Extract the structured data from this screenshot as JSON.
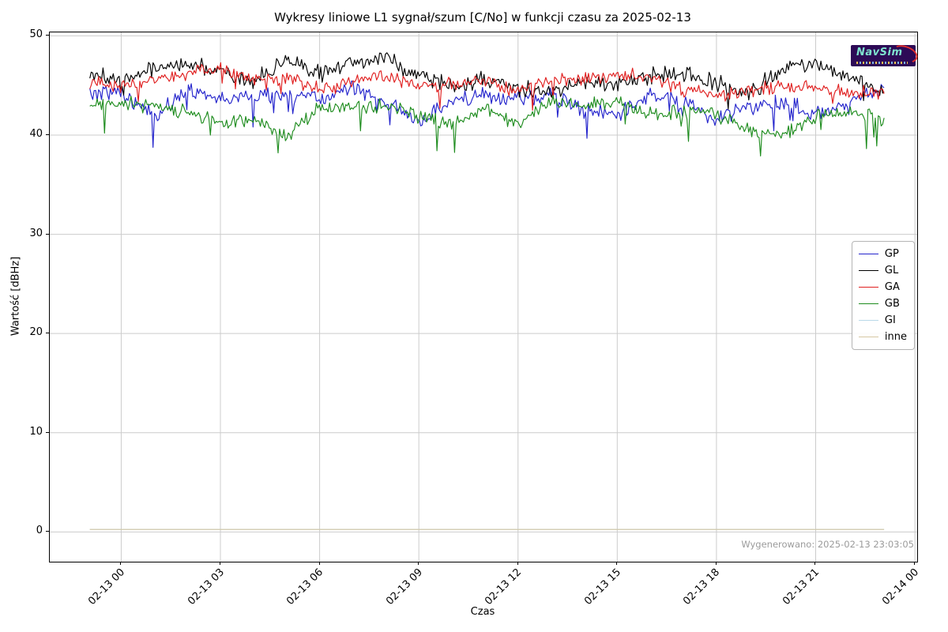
{
  "figure": {
    "title": "Wykresy liniowe L1 sygnał/szum [C/No] w funkcji czasu za 2025-02-13",
    "generated_text": "Wygenerowano: 2025-02-13 23:03:05",
    "logo_text": "NavSim"
  },
  "colors": {
    "grid": "#cccccc",
    "spine": "#000000",
    "watermark_text": "#9b9b9b",
    "logo_bg": "#2d0a56",
    "logo_text": "#7fe3cf",
    "logo_swoosh": "#e03030"
  },
  "chart_data": {
    "type": "line",
    "title": "Wykresy liniowe L1 sygnał/szum [C/No] w funkcji czasu za 2025-02-13",
    "xlabel": "Czas",
    "ylabel": "Wartość [dBHz]",
    "grid": true,
    "legend_position": "center right",
    "xlim_hours": [
      -2.16,
      24.07
    ],
    "ylim": [
      -3.0,
      50.35
    ],
    "y_ticks": [
      0,
      10,
      20,
      30,
      40,
      50
    ],
    "x_tick_hours": [
      0,
      3,
      6,
      9,
      12,
      15,
      18,
      21,
      24
    ],
    "x_tick_labels": [
      "02-13 00",
      "02-13 03",
      "02-13 06",
      "02-13 09",
      "02-13 12",
      "02-13 15",
      "02-13 18",
      "02-13 21",
      "02-14 00"
    ],
    "sample_start_hour": -0.95,
    "sample_end_hour": 23.07,
    "hourly_hours_start": -1,
    "hourly_step": 1,
    "series": [
      {
        "name": "GP",
        "color": "#2424cc",
        "noise_amp": 0.95,
        "spike_prob": 0.03,
        "spike_max": 2.4,
        "hourly_means": [
          44.1,
          44.4,
          41.8,
          44.6,
          43.6,
          43.9,
          44.1,
          43.6,
          44.7,
          43.3,
          41.2,
          43.6,
          43.9,
          43.6,
          43.9,
          42.6,
          42.0,
          44.1,
          43.4,
          41.6,
          42.9,
          43.4,
          42.1,
          43.1,
          44.9
        ]
      },
      {
        "name": "GL",
        "color": "#000000",
        "noise_amp": 1.0,
        "spike_prob": 0.02,
        "spike_max": 2.0,
        "hourly_means": [
          46.3,
          45.2,
          46.9,
          47.1,
          46.4,
          45.4,
          47.6,
          46.2,
          47.3,
          47.8,
          46.0,
          45.0,
          45.6,
          44.6,
          44.3,
          45.4,
          45.1,
          46.0,
          46.4,
          45.3,
          44.2,
          46.6,
          47.2,
          45.8,
          44.6
        ]
      },
      {
        "name": "GA",
        "color": "#e02020",
        "noise_amp": 0.85,
        "spike_prob": 0.02,
        "spike_max": 2.2,
        "hourly_means": [
          45.4,
          45.0,
          45.6,
          46.1,
          46.9,
          45.6,
          45.9,
          44.6,
          45.3,
          46.0,
          44.9,
          45.1,
          45.6,
          44.3,
          45.7,
          45.6,
          46.1,
          45.9,
          44.6,
          43.9,
          44.4,
          45.1,
          44.7,
          44.4,
          44.2
        ]
      },
      {
        "name": "GB",
        "color": "#1e8c1e",
        "noise_amp": 0.9,
        "spike_prob": 0.03,
        "spike_max": 2.6,
        "hourly_means": [
          42.9,
          43.1,
          43.0,
          42.4,
          41.2,
          41.6,
          39.8,
          42.7,
          43.1,
          42.9,
          42.1,
          40.8,
          42.9,
          40.9,
          43.6,
          43.1,
          43.4,
          42.1,
          42.4,
          42.1,
          40.6,
          39.9,
          42.0,
          42.2,
          41.6
        ]
      },
      {
        "name": "GI",
        "color": "#b9d9e8",
        "flat_value": 0.25
      },
      {
        "name": "inne",
        "color": "#d5c7a2",
        "flat_value": 0.25
      }
    ]
  }
}
